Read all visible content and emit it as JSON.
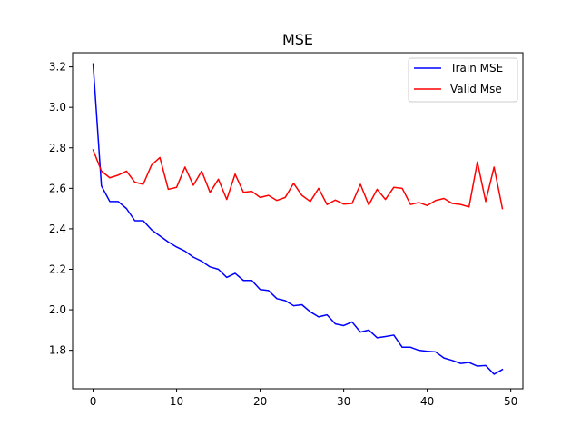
{
  "chart_data": {
    "type": "line",
    "title": "MSE",
    "xlabel": "",
    "ylabel": "",
    "xlim": [
      -2.45,
      51.45
    ],
    "ylim": [
      1.61,
      3.27
    ],
    "xticks": [
      0,
      10,
      20,
      30,
      40,
      50
    ],
    "yticks": [
      1.8,
      2.0,
      2.2,
      2.4,
      2.6,
      2.8,
      3.0,
      3.2
    ],
    "grid": false,
    "legend_position": "top-right",
    "x": [
      0,
      1,
      2,
      3,
      4,
      5,
      6,
      7,
      8,
      9,
      10,
      11,
      12,
      13,
      14,
      15,
      16,
      17,
      18,
      19,
      20,
      21,
      22,
      23,
      24,
      25,
      26,
      27,
      28,
      29,
      30,
      31,
      32,
      33,
      34,
      35,
      36,
      37,
      38,
      39,
      40,
      41,
      42,
      43,
      44,
      45,
      46,
      47,
      48,
      49
    ],
    "series": [
      {
        "name": "Train MSE",
        "color": "#0000ff",
        "values": [
          3.215,
          2.612,
          2.535,
          2.535,
          2.5,
          2.44,
          2.44,
          2.395,
          2.365,
          2.335,
          2.31,
          2.29,
          2.26,
          2.24,
          2.212,
          2.2,
          2.16,
          2.18,
          2.145,
          2.145,
          2.1,
          2.095,
          2.055,
          2.045,
          2.02,
          2.025,
          1.99,
          1.965,
          1.975,
          1.93,
          1.922,
          1.94,
          1.89,
          1.9,
          1.862,
          1.868,
          1.875,
          1.815,
          1.815,
          1.8,
          1.795,
          1.792,
          1.762,
          1.75,
          1.735,
          1.74,
          1.722,
          1.725,
          1.682,
          1.705
        ]
      },
      {
        "name": "Valid Mse",
        "color": "#ff0000",
        "values": [
          2.79,
          2.685,
          2.652,
          2.665,
          2.685,
          2.63,
          2.62,
          2.715,
          2.752,
          2.595,
          2.605,
          2.705,
          2.615,
          2.685,
          2.58,
          2.645,
          2.545,
          2.67,
          2.58,
          2.585,
          2.555,
          2.565,
          2.54,
          2.555,
          2.625,
          2.565,
          2.535,
          2.6,
          2.52,
          2.542,
          2.522,
          2.525,
          2.62,
          2.518,
          2.595,
          2.545,
          2.605,
          2.6,
          2.52,
          2.53,
          2.515,
          2.54,
          2.55,
          2.525,
          2.52,
          2.508,
          2.73,
          2.535,
          2.705,
          2.5
        ]
      }
    ]
  }
}
